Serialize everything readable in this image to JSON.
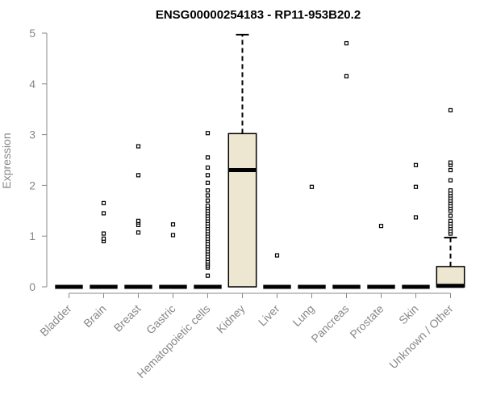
{
  "chart_data": {
    "type": "box",
    "title": "ENSG00000254183 - RP11-953B20.2",
    "ylabel": "Expression",
    "xlabel": "",
    "ylim": [
      0,
      5
    ],
    "yticks": [
      0,
      1,
      2,
      3,
      4,
      5
    ],
    "yticklabels": [
      "0",
      "1",
      "2",
      "3",
      "4",
      "5"
    ],
    "box_fill": "#EDE7D1",
    "box_stroke": "#000000",
    "categories": [
      "Bladder",
      "Brain",
      "Breast",
      "Gastric",
      "Hematopoietic cells",
      "Kidney",
      "Liver",
      "Lung",
      "Pancreas",
      "Prostate",
      "Skin",
      "Unknown / Other"
    ],
    "boxes": [
      {
        "min": 0,
        "q1": 0,
        "median": 0,
        "q3": 0,
        "max": 0,
        "outliers": []
      },
      {
        "min": 0,
        "q1": 0,
        "median": 0,
        "q3": 0,
        "max": 0,
        "outliers": [
          0.9,
          0.95,
          1.05,
          1.45,
          1.65
        ]
      },
      {
        "min": 0,
        "q1": 0,
        "median": 0,
        "q3": 0,
        "max": 0,
        "outliers": [
          1.07,
          1.22,
          1.27,
          1.3,
          2.2,
          2.77
        ]
      },
      {
        "min": 0,
        "q1": 0,
        "median": 0,
        "q3": 0,
        "max": 0,
        "outliers": [
          1.02,
          1.23
        ]
      },
      {
        "min": 0,
        "q1": 0,
        "median": 0,
        "q3": 0,
        "max": 0,
        "outliers": [
          0.22,
          0.38,
          0.42,
          0.46,
          0.5,
          0.55,
          0.6,
          0.65,
          0.7,
          0.75,
          0.8,
          0.85,
          0.9,
          0.95,
          1.0,
          1.05,
          1.1,
          1.15,
          1.2,
          1.25,
          1.3,
          1.35,
          1.4,
          1.45,
          1.5,
          1.55,
          1.6,
          1.7,
          1.8,
          1.9,
          2.05,
          2.2,
          2.35,
          2.55,
          3.03
        ]
      },
      {
        "min": 0,
        "q1": 0,
        "median": 2.3,
        "q3": 3.02,
        "max": 4.97,
        "outliers": []
      },
      {
        "min": 0,
        "q1": 0,
        "median": 0,
        "q3": 0,
        "max": 0,
        "outliers": [
          0.62
        ]
      },
      {
        "min": 0,
        "q1": 0,
        "median": 0,
        "q3": 0,
        "max": 0,
        "outliers": [
          1.97
        ]
      },
      {
        "min": 0,
        "q1": 0,
        "median": 0,
        "q3": 0,
        "max": 0,
        "outliers": [
          4.15,
          4.8
        ]
      },
      {
        "min": 0,
        "q1": 0,
        "median": 0,
        "q3": 0,
        "max": 0,
        "outliers": [
          1.2
        ]
      },
      {
        "min": 0,
        "q1": 0,
        "median": 0,
        "q3": 0,
        "max": 0,
        "outliers": [
          1.37,
          1.97,
          2.4
        ]
      },
      {
        "min": 0,
        "q1": 0,
        "median": 0.02,
        "q3": 0.4,
        "max": 0.97,
        "outliers": [
          1.05,
          1.1,
          1.15,
          1.2,
          1.25,
          1.3,
          1.4,
          1.5,
          1.55,
          1.6,
          1.65,
          1.7,
          1.75,
          1.8,
          1.85,
          1.9,
          2.1,
          2.3,
          2.4,
          2.45,
          3.48
        ]
      }
    ]
  }
}
